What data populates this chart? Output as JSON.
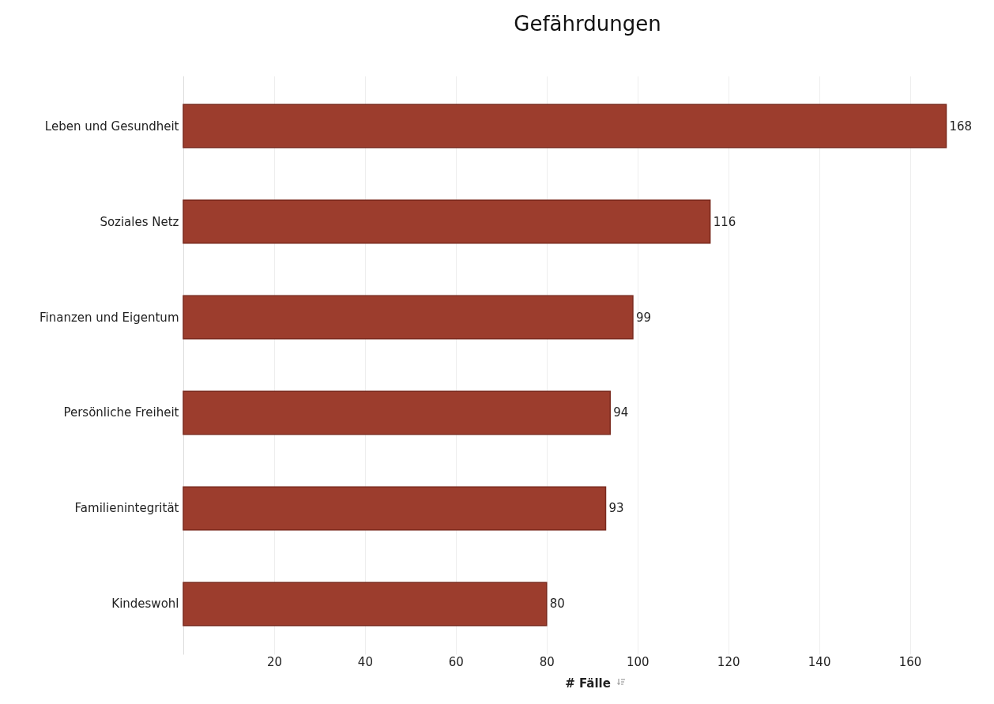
{
  "chart_data": {
    "type": "bar",
    "orientation": "horizontal",
    "title": "Gefährdungen",
    "xlabel": "# Fälle",
    "categories": [
      "Leben und Gesundheit",
      "Soziales Netz",
      "Finanzen und Eigentum",
      "Persönliche Freiheit",
      "Familienintegrität",
      "Kindeswohl"
    ],
    "values": [
      168,
      116,
      99,
      94,
      93,
      80
    ],
    "color": "#9c3d2d",
    "xlim": [
      0,
      178
    ],
    "xticks": [
      20,
      40,
      60,
      80,
      100,
      120,
      140,
      160
    ],
    "grid": "x",
    "data_labels": true
  }
}
